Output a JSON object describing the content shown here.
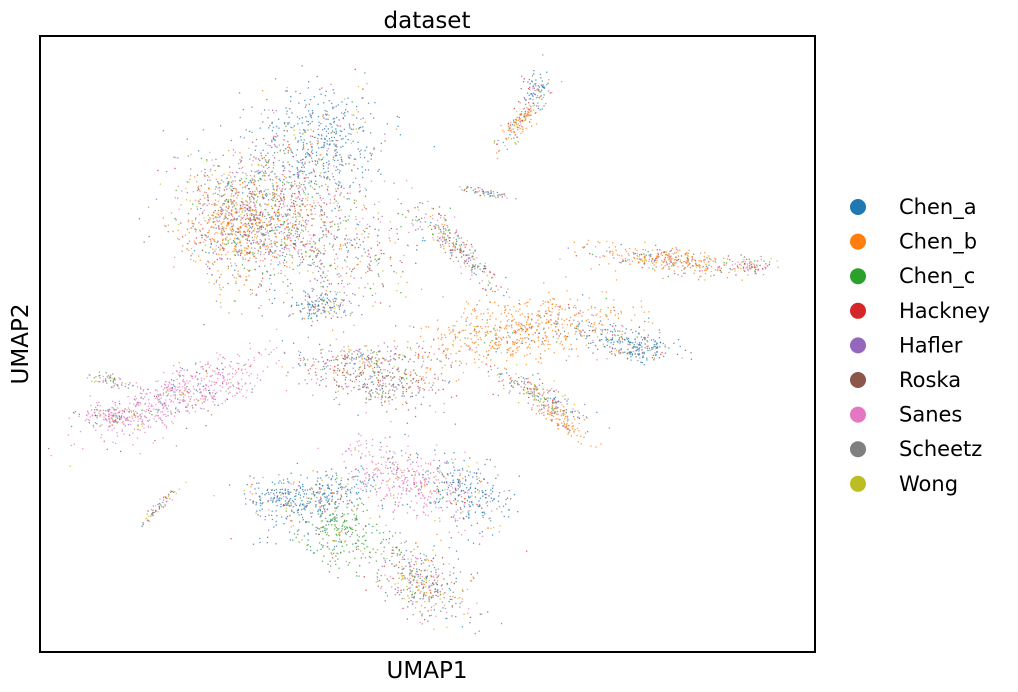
{
  "chart_data": {
    "type": "scatter",
    "title": "dataset",
    "xlabel": "UMAP1",
    "ylabel": "UMAP2",
    "grid": false,
    "axis_ticks": false,
    "legend_position": "right",
    "series": [
      {
        "name": "Chen_a",
        "color": "#1f77b4"
      },
      {
        "name": "Chen_b",
        "color": "#ff7f0e"
      },
      {
        "name": "Chen_c",
        "color": "#2ca02c"
      },
      {
        "name": "Hackney",
        "color": "#d62728"
      },
      {
        "name": "Hafler",
        "color": "#9467bd"
      },
      {
        "name": "Roska",
        "color": "#8c564b"
      },
      {
        "name": "Sanes",
        "color": "#e377c2"
      },
      {
        "name": "Scheetz",
        "color": "#7f7f7f"
      },
      {
        "name": "Wong",
        "color": "#bcbd22"
      }
    ]
  }
}
